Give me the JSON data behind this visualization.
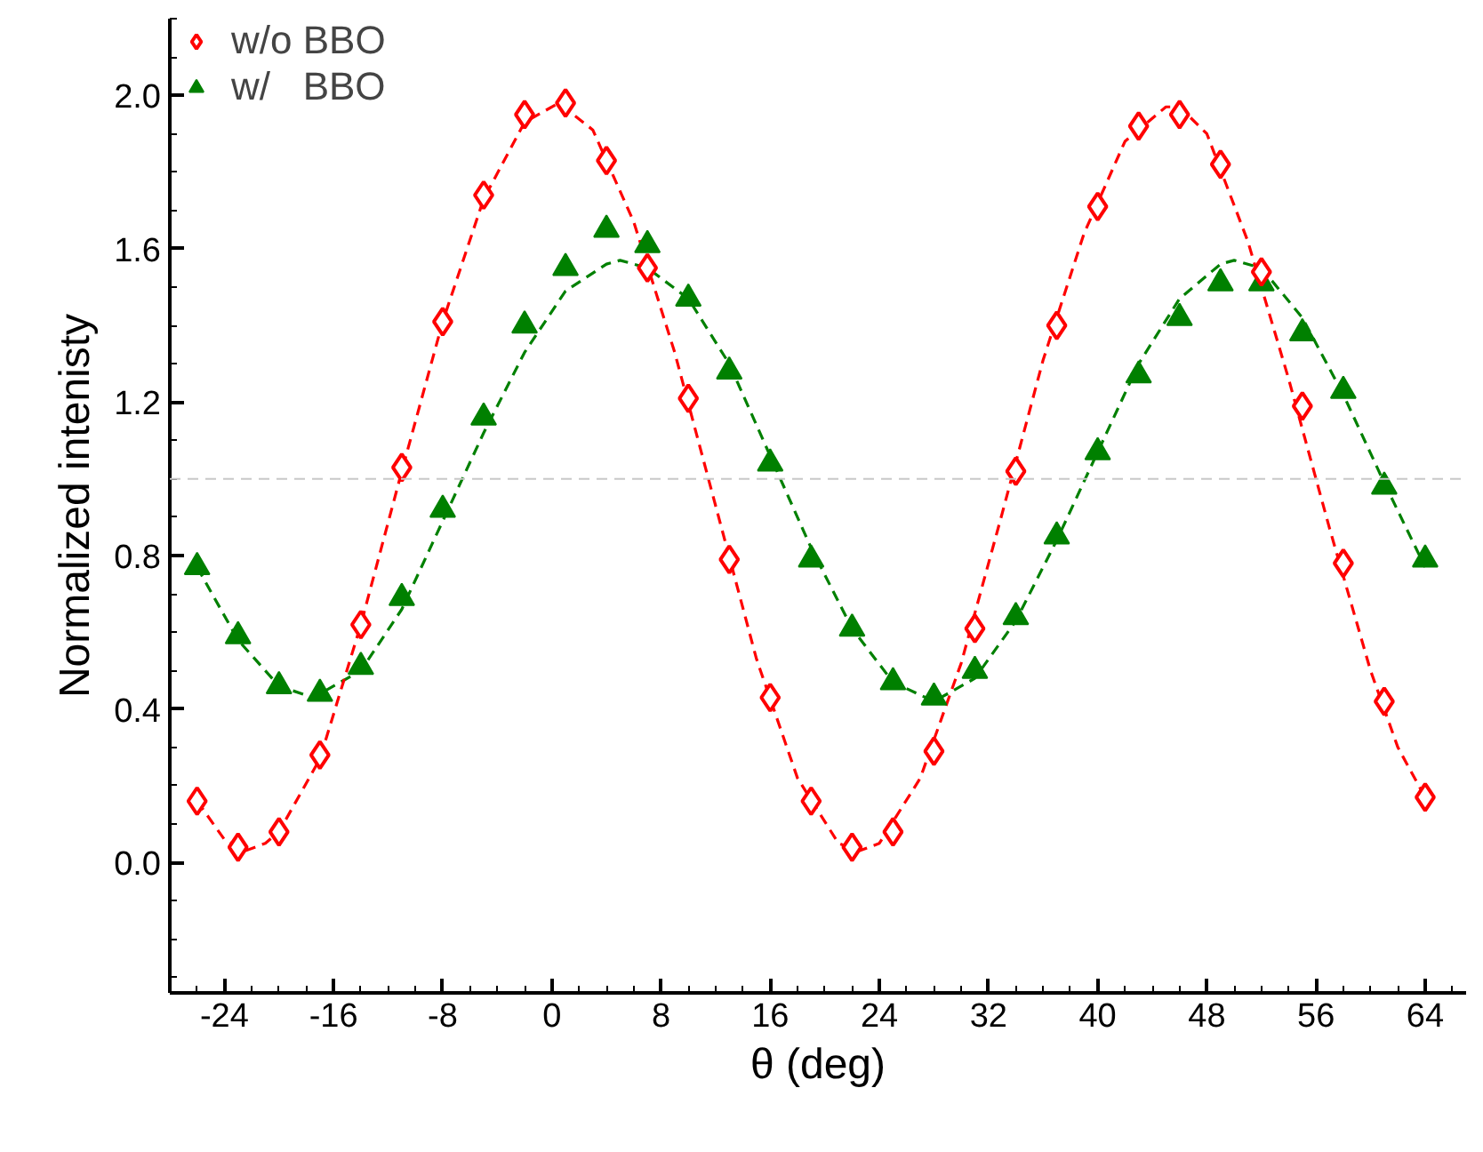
{
  "chart_data": {
    "type": "scatter",
    "xlabel": "θ (deg)",
    "ylabel": "Normalized intenisty",
    "xlim": [
      -28,
      67
    ],
    "ylim": [
      -0.34,
      2.2
    ],
    "xticks": [
      -24,
      -16,
      -8,
      0,
      8,
      16,
      24,
      32,
      40,
      48,
      56,
      64
    ],
    "yticks": [
      {
        "value": 0,
        "label": "0.0"
      },
      {
        "value": 0.4,
        "label": "0.4"
      },
      {
        "value": 0.8,
        "label": "0.8"
      },
      {
        "value": 1.2,
        "label": "1.2"
      },
      {
        "value": 1.6,
        "label": "1.6"
      },
      {
        "value": 2.0,
        "label": "2.0"
      }
    ],
    "grid": false,
    "legend": "top left",
    "ref_lines": [
      {
        "axis": "y",
        "value": 1.0,
        "color": "#c8c8c8",
        "line_style": "dashed"
      }
    ],
    "series": [
      {
        "name": "w/o BBO",
        "marker": "diamond",
        "color": "#ff0000",
        "x": [
          -26,
          -23,
          -20,
          -17,
          -14,
          -11,
          -8,
          -5,
          -2,
          1,
          4,
          7,
          10,
          13,
          16,
          19,
          22,
          25,
          28,
          31,
          34,
          37,
          40,
          43,
          46,
          49,
          52,
          55,
          58,
          61,
          64
        ],
        "values": [
          0.16,
          0.04,
          0.08,
          0.28,
          0.62,
          1.03,
          1.41,
          1.74,
          1.95,
          1.98,
          1.83,
          1.55,
          1.21,
          0.79,
          0.43,
          0.16,
          0.04,
          0.08,
          0.29,
          0.61,
          1.02,
          1.4,
          1.71,
          1.92,
          1.95,
          1.82,
          1.54,
          1.19,
          0.78,
          0.42,
          0.17
        ]
      },
      {
        "name": "w/   BBO",
        "marker": "triangle",
        "color": "#008000",
        "x": [
          -26,
          -23,
          -20,
          -17,
          -14,
          -11,
          -8,
          -5,
          -2,
          1,
          4,
          7,
          10,
          13,
          16,
          19,
          22,
          25,
          28,
          31,
          34,
          37,
          40,
          43,
          46,
          49,
          52,
          55,
          58,
          61,
          64
        ],
        "values": [
          0.77,
          0.59,
          0.46,
          0.44,
          0.51,
          0.69,
          0.92,
          1.16,
          1.4,
          1.55,
          1.65,
          1.61,
          1.47,
          1.28,
          1.04,
          0.79,
          0.61,
          0.47,
          0.43,
          0.5,
          0.64,
          0.85,
          1.07,
          1.27,
          1.42,
          1.51,
          1.51,
          1.38,
          1.23,
          0.98,
          0.79
        ]
      },
      {
        "type": "line",
        "line_style": "dashed",
        "color": "#ff0000",
        "x": [
          -26,
          -24,
          -22.5,
          -21,
          -20,
          -17,
          -14,
          -11,
          -8,
          -5,
          -2,
          0.5,
          3,
          6,
          9,
          12,
          15,
          18,
          21,
          22.5,
          24,
          27,
          30,
          33,
          36,
          39,
          42,
          45,
          46,
          48,
          51,
          54,
          57,
          60,
          62,
          64
        ],
        "values": [
          0.16,
          0.06,
          0.03,
          0.05,
          0.08,
          0.27,
          0.62,
          1.02,
          1.41,
          1.73,
          1.93,
          1.98,
          1.91,
          1.67,
          1.33,
          0.93,
          0.53,
          0.22,
          0.05,
          0.03,
          0.05,
          0.22,
          0.52,
          0.91,
          1.31,
          1.64,
          1.88,
          1.97,
          1.97,
          1.9,
          1.62,
          1.26,
          0.87,
          0.5,
          0.3,
          0.17
        ]
      },
      {
        "type": "line",
        "line_style": "dashed",
        "color": "#008000",
        "x": [
          -26,
          -23,
          -20,
          -17.5,
          -14,
          -11,
          -8,
          -5,
          -2,
          1,
          4,
          5,
          7,
          10,
          13,
          16,
          19,
          22,
          25,
          28,
          31,
          34,
          37,
          40,
          43,
          46,
          49,
          50,
          52,
          55,
          58,
          61,
          64
        ],
        "values": [
          0.77,
          0.58,
          0.46,
          0.43,
          0.5,
          0.66,
          0.89,
          1.12,
          1.33,
          1.49,
          1.56,
          1.57,
          1.55,
          1.47,
          1.3,
          1.06,
          0.82,
          0.61,
          0.47,
          0.42,
          0.48,
          0.63,
          0.84,
          1.07,
          1.3,
          1.47,
          1.56,
          1.57,
          1.55,
          1.42,
          1.22,
          0.99,
          0.77
        ]
      }
    ]
  }
}
